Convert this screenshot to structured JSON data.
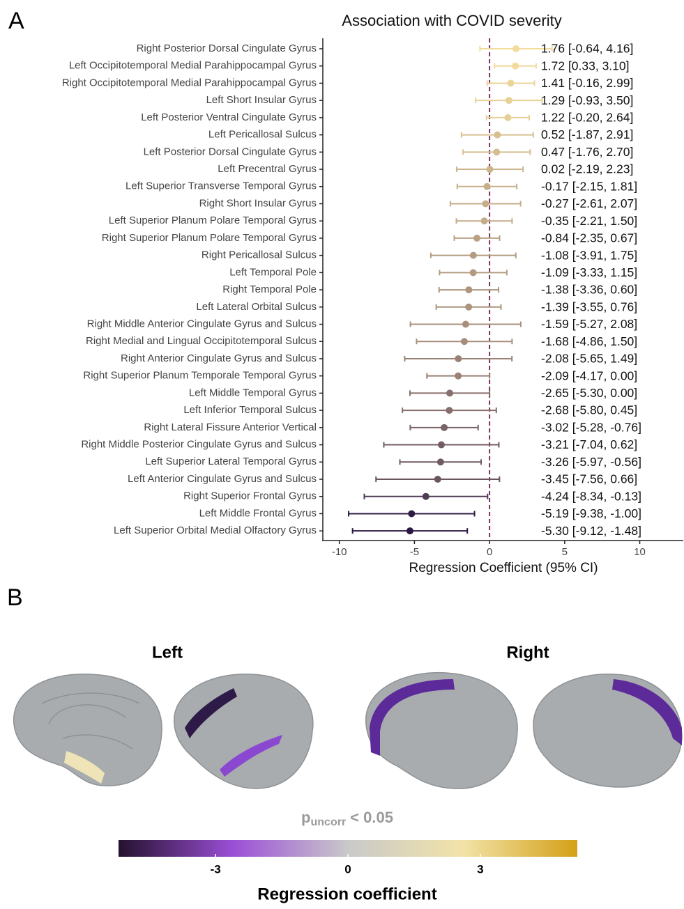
{
  "panels": {
    "a": "A",
    "b": "B"
  },
  "chart_data": {
    "type": "forest",
    "title": "Association with COVID severity",
    "xlabel": "Regression Coefficient (95% CI)",
    "categories": [
      "Right Posterior Dorsal Cingulate Gyrus",
      "Left Occipitotemporal Medial Parahippocampal Gyrus",
      "Right Occipitotemporal Medial Parahippocampal Gyrus",
      "Left Short Insular Gyrus",
      "Left Posterior Ventral Cingulate Gyrus",
      "Left Pericallosal Sulcus",
      "Left Posterior Dorsal Cingulate Gyrus",
      "Left Precentral Gyrus",
      "Left Superior Transverse Temporal Gyrus",
      "Right Short Insular Gyrus",
      "Left Superior Planum Polare Temporal Gyrus",
      "Right Superior Planum Polare Temporal Gyrus",
      "Right Pericallosal Sulcus",
      "Left Temporal Pole",
      "Right Temporal Pole",
      "Left Lateral Orbital Sulcus",
      "Right Middle Anterior Cingulate Gyrus and Sulcus",
      "Right Medial and Lingual Occipitotemporal Sulcus",
      "Right Anterior Cingulate Gyrus and Sulcus",
      "Right Superior Planum Temporale Temporal Gyrus",
      "Left Middle Temporal Gyrus",
      "Left Inferior Temporal Sulcus",
      "Right Lateral Fissure Anterior Vertical",
      "Right Middle Posterior Cingulate Gyrus and Sulcus",
      "Left Superior Lateral Temporal Gyrus",
      "Left Anterior Cingulate Gyrus and Sulcus",
      "Right Superior Frontal Gyrus",
      "Left Middle Frontal Gyrus",
      "Left Superior Orbital Medial Olfactory Gyrus"
    ],
    "values": [
      1.76,
      1.72,
      1.41,
      1.29,
      1.22,
      0.52,
      0.47,
      0.02,
      -0.17,
      -0.27,
      -0.35,
      -0.84,
      -1.08,
      -1.09,
      -1.38,
      -1.39,
      -1.59,
      -1.68,
      -2.08,
      -2.09,
      -2.65,
      -2.68,
      -3.02,
      -3.21,
      -3.26,
      -3.45,
      -4.24,
      -5.19,
      -5.3
    ],
    "lower": [
      -0.64,
      0.33,
      -0.16,
      -0.93,
      -0.2,
      -1.87,
      -1.76,
      -2.19,
      -2.15,
      -2.61,
      -2.21,
      -2.35,
      -3.91,
      -3.33,
      -3.36,
      -3.55,
      -5.27,
      -4.86,
      -5.65,
      -4.17,
      -5.3,
      -5.8,
      -5.28,
      -7.04,
      -5.97,
      -7.56,
      -8.34,
      -9.38,
      -9.12
    ],
    "upper": [
      4.16,
      3.1,
      2.99,
      3.5,
      2.64,
      2.91,
      2.7,
      2.23,
      1.81,
      2.07,
      1.5,
      0.67,
      1.75,
      1.15,
      0.6,
      0.76,
      2.08,
      1.5,
      1.49,
      0.0,
      0.0,
      0.45,
      -0.76,
      0.62,
      -0.56,
      0.66,
      -0.13,
      -1.0,
      -1.48
    ],
    "value_labels": [
      "1.76 [-0.64, 4.16]",
      "1.72 [0.33, 3.10]",
      "1.41 [-0.16, 2.99]",
      "1.29 [-0.93, 3.50]",
      "1.22 [-0.20, 2.64]",
      "0.52 [-1.87, 2.91]",
      "0.47 [-1.76, 2.70]",
      "0.02 [-2.19, 2.23]",
      "-0.17 [-2.15, 1.81]",
      "-0.27 [-2.61, 2.07]",
      "-0.35 [-2.21, 1.50]",
      "-0.84 [-2.35, 0.67]",
      "-1.08 [-3.91, 1.75]",
      "-1.09 [-3.33, 1.15]",
      "-1.38 [-3.36, 0.60]",
      "-1.39 [-3.55, 0.76]",
      "-1.59 [-5.27, 2.08]",
      "-1.68 [-4.86, 1.50]",
      "-2.08 [-5.65, 1.49]",
      "-2.09 [-4.17, 0.00]",
      "-2.65 [-5.30, 0.00]",
      "-2.68 [-5.80, 0.45]",
      "-3.02 [-5.28, -0.76]",
      "-3.21 [-7.04, 0.62]",
      "-3.26 [-5.97, -0.56]",
      "-3.45 [-7.56, 0.66]",
      "-4.24 [-8.34, -0.13]",
      "-5.19 [-9.38, -1.00]",
      "-5.30 [-9.12, -1.48]"
    ],
    "xlim": [
      -11.1,
      12.9
    ],
    "xticks": [
      -10,
      -5,
      0,
      5,
      10
    ],
    "reference_line": 0,
    "reference_color": "#7b2d5e",
    "color_scale": [
      "#2b1842",
      "#a48c7a",
      "#f2dc9c"
    ]
  },
  "brain": {
    "left_label": "Left",
    "right_label": "Right",
    "threshold": {
      "symbol": "p",
      "subscript": "uncorr",
      "text": "< 0.05"
    },
    "colorbar": {
      "label": "Regression coefficient",
      "lim": [
        -5.2,
        5.2
      ],
      "ticks": [
        -3,
        0,
        3
      ],
      "colors": [
        "#24112f",
        "#9b4fd6",
        "#c9c9c9",
        "#f2e3a8",
        "#d4a017"
      ]
    }
  }
}
